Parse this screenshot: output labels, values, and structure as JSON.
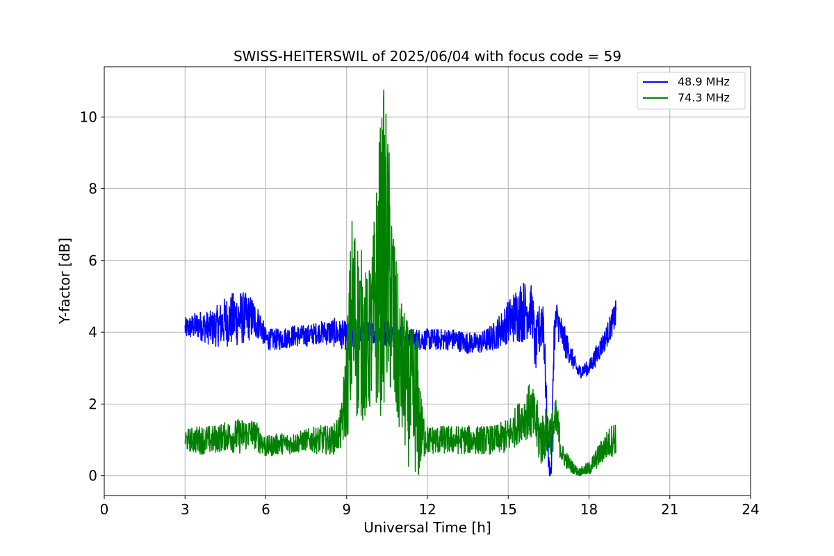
{
  "chart_data": {
    "type": "line",
    "title": "SWISS-HEITERSWIL of 2025/06/04 with focus code = 59",
    "xlabel": "Universal Time [h]",
    "ylabel": "Y-factor [dB]",
    "xlim": [
      0,
      24
    ],
    "ylim": [
      -0.55,
      11.4
    ],
    "xticks": [
      0,
      3,
      6,
      9,
      12,
      15,
      18,
      21,
      24
    ],
    "yticks": [
      0,
      2,
      4,
      6,
      8,
      10
    ],
    "grid": true,
    "legend_position": "top-right",
    "series": [
      {
        "name": "48.9 MHz",
        "color": "#0000ff",
        "x": [
          3.0,
          3.5,
          4.0,
          4.5,
          5.0,
          5.5,
          5.8,
          6.0,
          6.5,
          7.0,
          7.5,
          8.0,
          8.5,
          9.0,
          9.5,
          10.0,
          10.5,
          11.0,
          11.5,
          12.0,
          12.5,
          13.0,
          13.5,
          14.0,
          14.5,
          15.0,
          15.5,
          15.9,
          16.0,
          16.2,
          16.3,
          16.5,
          16.6,
          16.7,
          16.8,
          17.0,
          17.3,
          17.6,
          18.0,
          18.3,
          18.6,
          19.0
        ],
        "values": [
          4.1,
          4.2,
          4.1,
          4.3,
          4.4,
          4.4,
          4.2,
          3.8,
          3.8,
          3.9,
          3.9,
          4.0,
          4.0,
          3.9,
          3.9,
          4.0,
          4.0,
          3.9,
          3.8,
          3.8,
          3.8,
          3.8,
          3.7,
          3.7,
          3.9,
          4.3,
          4.6,
          4.6,
          3.5,
          4.2,
          4.5,
          0.3,
          0.1,
          3.9,
          4.4,
          3.9,
          3.4,
          2.9,
          3.0,
          3.4,
          3.8,
          4.5
        ],
        "spread": [
          0.3,
          0.4,
          0.5,
          0.7,
          0.8,
          0.6,
          0.4,
          0.3,
          0.3,
          0.3,
          0.3,
          0.3,
          0.4,
          0.4,
          0.4,
          0.3,
          0.4,
          0.3,
          0.3,
          0.3,
          0.3,
          0.3,
          0.3,
          0.3,
          0.4,
          0.6,
          0.9,
          0.7,
          0.7,
          0.8,
          0.9,
          0.3,
          0.2,
          0.6,
          0.5,
          0.5,
          0.3,
          0.2,
          0.2,
          0.3,
          0.3,
          0.4
        ]
      },
      {
        "name": "74.3 MHz",
        "color": "#008000",
        "x": [
          3.0,
          3.5,
          4.0,
          4.5,
          5.0,
          5.5,
          5.8,
          6.0,
          6.5,
          7.0,
          7.5,
          8.0,
          8.5,
          8.8,
          9.0,
          9.2,
          9.5,
          9.8,
          10.0,
          10.2,
          10.4,
          10.6,
          10.8,
          11.0,
          11.2,
          11.4,
          11.6,
          11.8,
          12.0,
          12.5,
          13.0,
          13.5,
          14.0,
          14.5,
          15.0,
          15.5,
          15.8,
          16.0,
          16.2,
          16.4,
          16.6,
          16.8,
          17.0,
          17.3,
          17.6,
          18.0,
          18.3,
          18.6,
          19.0
        ],
        "values": [
          1.0,
          1.0,
          1.0,
          1.1,
          1.1,
          1.2,
          1.0,
          0.8,
          0.9,
          0.9,
          1.0,
          1.0,
          1.0,
          1.3,
          2.5,
          4.5,
          4.0,
          3.5,
          4.5,
          5.5,
          6.5,
          5.5,
          3.8,
          3.0,
          2.5,
          2.0,
          1.8,
          1.2,
          1.0,
          1.0,
          1.0,
          1.0,
          1.0,
          1.0,
          1.1,
          1.6,
          1.8,
          1.5,
          1.0,
          1.2,
          1.2,
          1.5,
          0.6,
          0.3,
          0.1,
          0.2,
          0.5,
          0.8,
          1.1
        ],
        "spread": [
          0.3,
          0.4,
          0.4,
          0.4,
          0.5,
          0.4,
          0.4,
          0.3,
          0.3,
          0.3,
          0.3,
          0.4,
          0.4,
          0.6,
          1.5,
          3.0,
          2.5,
          2.0,
          2.5,
          4.0,
          4.5,
          3.5,
          2.5,
          2.0,
          2.0,
          2.0,
          2.5,
          0.8,
          0.4,
          0.4,
          0.4,
          0.4,
          0.4,
          0.4,
          0.5,
          0.6,
          0.8,
          0.8,
          0.8,
          0.7,
          0.6,
          0.7,
          0.3,
          0.2,
          0.1,
          0.2,
          0.3,
          0.4,
          0.5
        ]
      }
    ]
  }
}
